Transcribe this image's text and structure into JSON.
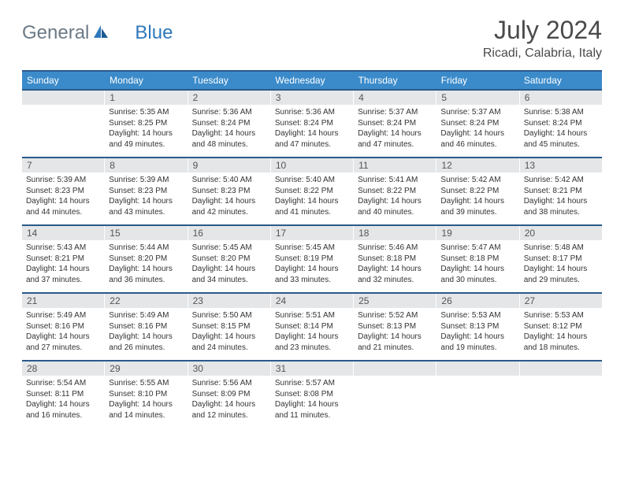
{
  "logo": {
    "text1": "General",
    "text2": "Blue"
  },
  "title": "July 2024",
  "location": "Ricadi, Calabria, Italy",
  "colors": {
    "header_bg": "#3b8bca",
    "header_border": "#2a5a8a",
    "daynum_bg": "#e4e6e8",
    "logo_gray": "#6b7a86",
    "logo_blue": "#2f78bb"
  },
  "day_names": [
    "Sunday",
    "Monday",
    "Tuesday",
    "Wednesday",
    "Thursday",
    "Friday",
    "Saturday"
  ],
  "weeks": [
    [
      null,
      {
        "n": "1",
        "sr": "5:35 AM",
        "ss": "8:25 PM",
        "dl": "14 hours and 49 minutes."
      },
      {
        "n": "2",
        "sr": "5:36 AM",
        "ss": "8:24 PM",
        "dl": "14 hours and 48 minutes."
      },
      {
        "n": "3",
        "sr": "5:36 AM",
        "ss": "8:24 PM",
        "dl": "14 hours and 47 minutes."
      },
      {
        "n": "4",
        "sr": "5:37 AM",
        "ss": "8:24 PM",
        "dl": "14 hours and 47 minutes."
      },
      {
        "n": "5",
        "sr": "5:37 AM",
        "ss": "8:24 PM",
        "dl": "14 hours and 46 minutes."
      },
      {
        "n": "6",
        "sr": "5:38 AM",
        "ss": "8:24 PM",
        "dl": "14 hours and 45 minutes."
      }
    ],
    [
      {
        "n": "7",
        "sr": "5:39 AM",
        "ss": "8:23 PM",
        "dl": "14 hours and 44 minutes."
      },
      {
        "n": "8",
        "sr": "5:39 AM",
        "ss": "8:23 PM",
        "dl": "14 hours and 43 minutes."
      },
      {
        "n": "9",
        "sr": "5:40 AM",
        "ss": "8:23 PM",
        "dl": "14 hours and 42 minutes."
      },
      {
        "n": "10",
        "sr": "5:40 AM",
        "ss": "8:22 PM",
        "dl": "14 hours and 41 minutes."
      },
      {
        "n": "11",
        "sr": "5:41 AM",
        "ss": "8:22 PM",
        "dl": "14 hours and 40 minutes."
      },
      {
        "n": "12",
        "sr": "5:42 AM",
        "ss": "8:22 PM",
        "dl": "14 hours and 39 minutes."
      },
      {
        "n": "13",
        "sr": "5:42 AM",
        "ss": "8:21 PM",
        "dl": "14 hours and 38 minutes."
      }
    ],
    [
      {
        "n": "14",
        "sr": "5:43 AM",
        "ss": "8:21 PM",
        "dl": "14 hours and 37 minutes."
      },
      {
        "n": "15",
        "sr": "5:44 AM",
        "ss": "8:20 PM",
        "dl": "14 hours and 36 minutes."
      },
      {
        "n": "16",
        "sr": "5:45 AM",
        "ss": "8:20 PM",
        "dl": "14 hours and 34 minutes."
      },
      {
        "n": "17",
        "sr": "5:45 AM",
        "ss": "8:19 PM",
        "dl": "14 hours and 33 minutes."
      },
      {
        "n": "18",
        "sr": "5:46 AM",
        "ss": "8:18 PM",
        "dl": "14 hours and 32 minutes."
      },
      {
        "n": "19",
        "sr": "5:47 AM",
        "ss": "8:18 PM",
        "dl": "14 hours and 30 minutes."
      },
      {
        "n": "20",
        "sr": "5:48 AM",
        "ss": "8:17 PM",
        "dl": "14 hours and 29 minutes."
      }
    ],
    [
      {
        "n": "21",
        "sr": "5:49 AM",
        "ss": "8:16 PM",
        "dl": "14 hours and 27 minutes."
      },
      {
        "n": "22",
        "sr": "5:49 AM",
        "ss": "8:16 PM",
        "dl": "14 hours and 26 minutes."
      },
      {
        "n": "23",
        "sr": "5:50 AM",
        "ss": "8:15 PM",
        "dl": "14 hours and 24 minutes."
      },
      {
        "n": "24",
        "sr": "5:51 AM",
        "ss": "8:14 PM",
        "dl": "14 hours and 23 minutes."
      },
      {
        "n": "25",
        "sr": "5:52 AM",
        "ss": "8:13 PM",
        "dl": "14 hours and 21 minutes."
      },
      {
        "n": "26",
        "sr": "5:53 AM",
        "ss": "8:13 PM",
        "dl": "14 hours and 19 minutes."
      },
      {
        "n": "27",
        "sr": "5:53 AM",
        "ss": "8:12 PM",
        "dl": "14 hours and 18 minutes."
      }
    ],
    [
      {
        "n": "28",
        "sr": "5:54 AM",
        "ss": "8:11 PM",
        "dl": "14 hours and 16 minutes."
      },
      {
        "n": "29",
        "sr": "5:55 AM",
        "ss": "8:10 PM",
        "dl": "14 hours and 14 minutes."
      },
      {
        "n": "30",
        "sr": "5:56 AM",
        "ss": "8:09 PM",
        "dl": "14 hours and 12 minutes."
      },
      {
        "n": "31",
        "sr": "5:57 AM",
        "ss": "8:08 PM",
        "dl": "14 hours and 11 minutes."
      },
      null,
      null,
      null
    ]
  ],
  "labels": {
    "sunrise": "Sunrise:",
    "sunset": "Sunset:",
    "daylight": "Daylight:"
  }
}
